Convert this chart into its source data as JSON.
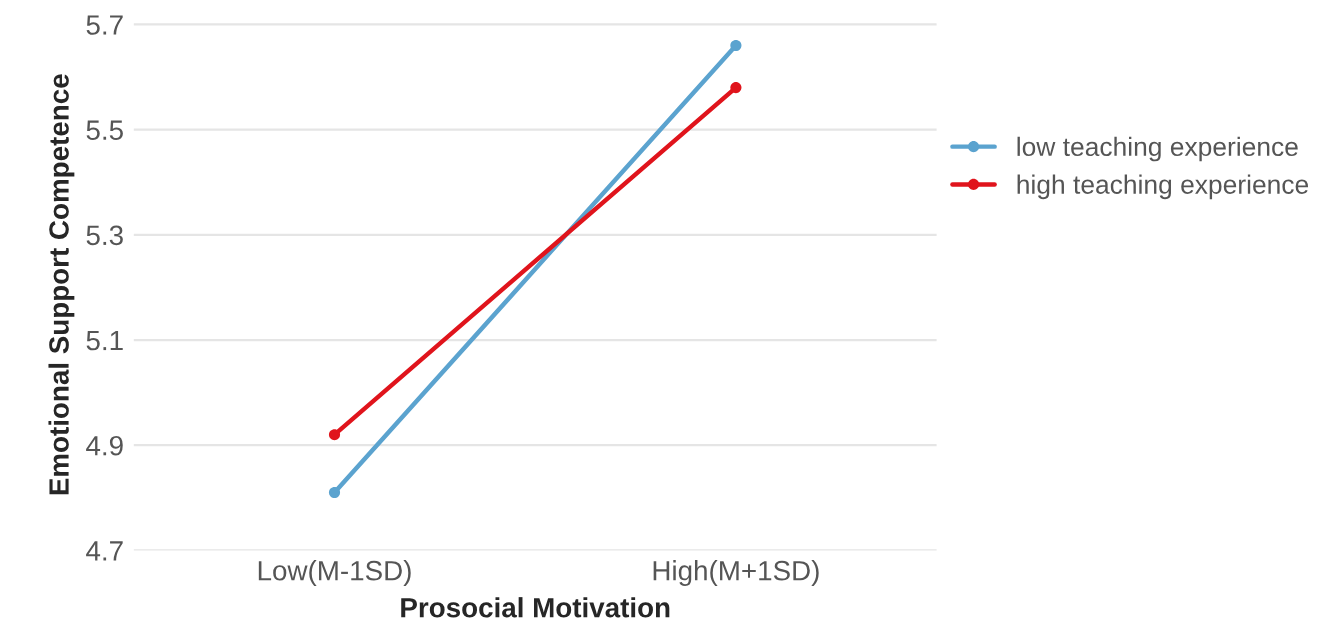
{
  "chart_data": {
    "type": "line",
    "xlabel": "Prosocial Motivation",
    "ylabel": "Emotional Support Competence",
    "categories": [
      "Low(M-1SD)",
      "High(M+1SD)"
    ],
    "series": [
      {
        "name": "low teaching experience",
        "color": "#5ba3cf",
        "values": [
          4.81,
          5.66
        ]
      },
      {
        "name": "high teaching experience",
        "color": "#e0141c",
        "values": [
          4.92,
          5.58
        ]
      }
    ],
    "ylim": [
      4.7,
      5.71
    ],
    "yticks": [
      {
        "value": 4.7,
        "label": "4.7"
      },
      {
        "value": 4.9,
        "label": "4.9"
      },
      {
        "value": 5.1,
        "label": "5.1"
      },
      {
        "value": 5.3,
        "label": "5.3"
      },
      {
        "value": 5.5,
        "label": "5.5"
      },
      {
        "value": 5.7,
        "label": "5.7"
      }
    ],
    "grid": "y",
    "legend": "right",
    "marker": "circle"
  }
}
